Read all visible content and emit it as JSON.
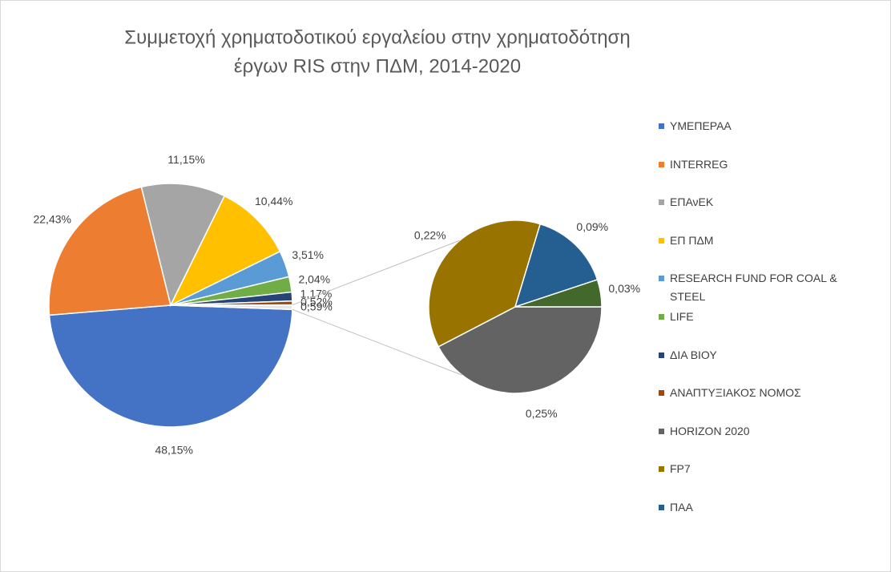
{
  "chart_data": {
    "type": "pie_of_pie",
    "title": [
      "Συμμετοχή χρηματοδοτικού εργαλείου στην χρηματοδότηση",
      "έργων RIS στην ΠΔΜ, 2014-2020"
    ],
    "primary": {
      "categories": [
        "ΥΜΕΠΕΡΑΑ",
        "INTERREG",
        "ΕΠΑνΕΚ",
        "ΕΠ ΠΔΜ",
        "RESEARCH FUND FOR COAL & STEEL",
        "LIFE",
        "ΔΙΑ ΒΙΟΥ",
        "ΑΝΑΠΤΥΞΙΑΚΟΣ ΝΟΜΟΣ",
        null
      ],
      "values": [
        48.15,
        22.43,
        11.15,
        10.44,
        3.51,
        2.04,
        1.17,
        0.52,
        0.59
      ],
      "value_labels": [
        "48,15%",
        "22,43%",
        "11,15%",
        "10,44%",
        "3,51%",
        "2,04%",
        "1,17%",
        "0,52%",
        "0,59%"
      ],
      "colors": [
        "#4472c4",
        "#ed7d31",
        "#a5a5a5",
        "#ffc000",
        "#5b9bd5",
        "#70ad47",
        "#264478",
        "#9e480e",
        "#e7e6e6"
      ]
    },
    "secondary": {
      "categories": [
        "HORIZON 2020",
        "FP7",
        "ΠΑΑ",
        null
      ],
      "values": [
        0.25,
        0.22,
        0.09,
        0.03
      ],
      "value_labels": [
        "0,25%",
        "0,22%",
        "0,09%",
        "0,03%"
      ],
      "colors": [
        "#636363",
        "#997300",
        "#255e91",
        "#43682b"
      ]
    }
  }
}
